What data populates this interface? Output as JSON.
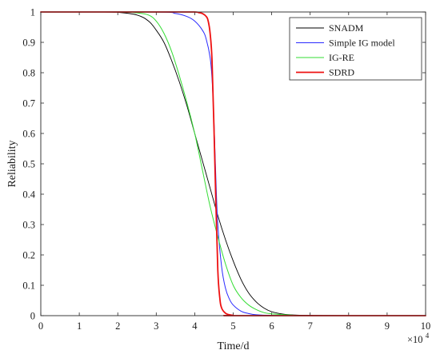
{
  "chart_data": {
    "type": "line",
    "title": "",
    "xlabel": "Time/d",
    "ylabel": "Reliability",
    "x_multiplier_label": "×10",
    "x_multiplier_exponent": "4",
    "xlim": [
      0,
      10
    ],
    "ylim": [
      0,
      1
    ],
    "xticks": [
      0,
      1,
      2,
      3,
      4,
      5,
      6,
      7,
      8,
      9,
      10
    ],
    "xtick_labels": [
      "0",
      "1",
      "2",
      "3",
      "4",
      "5",
      "6",
      "7",
      "8",
      "9",
      "10"
    ],
    "yticks": [
      0,
      0.1,
      0.2,
      0.3,
      0.4,
      0.5,
      0.6,
      0.7,
      0.8,
      0.9,
      1
    ],
    "ytick_labels": [
      "0",
      "0.1",
      "0.2",
      "0.3",
      "0.4",
      "0.5",
      "0.6",
      "0.7",
      "0.8",
      "0.9",
      "1"
    ],
    "grid": false,
    "legend_position": "top-right",
    "series": [
      {
        "name": "SNADM",
        "color": "#000000",
        "x": [
          0,
          1.5,
          2.0,
          2.5,
          2.8,
          3.0,
          3.2,
          3.4,
          3.6,
          3.8,
          4.0,
          4.2,
          4.4,
          4.6,
          4.8,
          5.0,
          5.2,
          5.4,
          5.6,
          5.8,
          6.0,
          6.3,
          6.6,
          7.0,
          8.0,
          10.0
        ],
        "y": [
          1.0,
          1.0,
          0.999,
          0.99,
          0.97,
          0.94,
          0.9,
          0.84,
          0.77,
          0.69,
          0.6,
          0.51,
          0.42,
          0.33,
          0.25,
          0.18,
          0.12,
          0.075,
          0.045,
          0.025,
          0.013,
          0.005,
          0.002,
          0.001,
          0.0,
          0.0
        ]
      },
      {
        "name": "Simple IG model",
        "color": "#2a2aff",
        "x": [
          0,
          3.0,
          3.5,
          3.8,
          4.0,
          4.2,
          4.3,
          4.4,
          4.45,
          4.5,
          4.55,
          4.6,
          4.7,
          4.8,
          4.9,
          5.0,
          5.2,
          5.4,
          5.6,
          6.0,
          7.0,
          10.0
        ],
        "y": [
          1.0,
          1.0,
          0.995,
          0.985,
          0.97,
          0.94,
          0.91,
          0.85,
          0.78,
          0.64,
          0.45,
          0.3,
          0.16,
          0.09,
          0.055,
          0.035,
          0.015,
          0.007,
          0.003,
          0.001,
          0.0,
          0.0
        ]
      },
      {
        "name": "IG-RE",
        "color": "#33dd33",
        "x": [
          0,
          2.0,
          2.5,
          2.8,
          3.0,
          3.2,
          3.4,
          3.6,
          3.8,
          4.0,
          4.2,
          4.4,
          4.6,
          4.8,
          5.0,
          5.2,
          5.4,
          5.6,
          5.8,
          6.0,
          6.5,
          7.0,
          10.0
        ],
        "y": [
          1.0,
          1.0,
          0.997,
          0.99,
          0.97,
          0.93,
          0.87,
          0.79,
          0.7,
          0.6,
          0.48,
          0.36,
          0.26,
          0.17,
          0.1,
          0.06,
          0.035,
          0.02,
          0.01,
          0.006,
          0.002,
          0.0,
          0.0
        ]
      },
      {
        "name": "SDRD",
        "color": "#ee1111",
        "x": [
          0,
          3.5,
          4.0,
          4.1,
          4.2,
          4.3,
          4.35,
          4.4,
          4.45,
          4.5,
          4.55,
          4.6,
          4.65,
          4.7,
          4.8,
          4.9,
          5.0,
          5.2,
          10.0
        ],
        "y": [
          1.0,
          1.0,
          1.0,
          0.998,
          0.995,
          0.985,
          0.97,
          0.93,
          0.84,
          0.62,
          0.37,
          0.15,
          0.06,
          0.025,
          0.008,
          0.003,
          0.001,
          0.0,
          0.0
        ]
      }
    ]
  }
}
